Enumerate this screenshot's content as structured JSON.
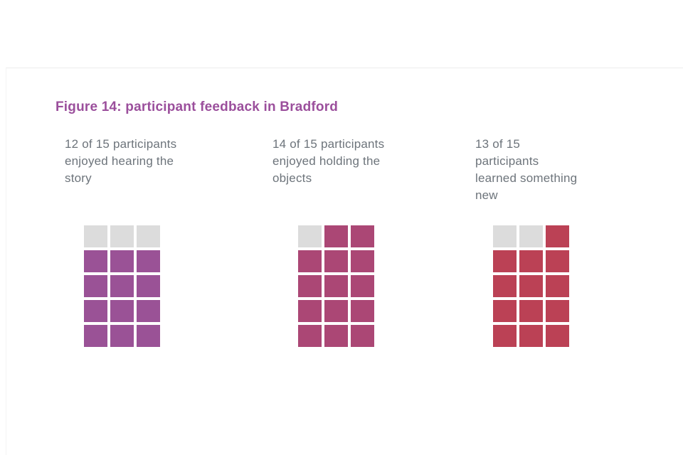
{
  "figure": {
    "title": "Figure 14: participant feedback in Bradford",
    "title_color": "#9b4f9c",
    "label_color": "#6d747b",
    "empty_cell_color": "#dcdcdc",
    "page_border_color": "#ececec"
  },
  "chart_data": {
    "type": "waffle",
    "title": "Figure 14: participant feedback in Bradford",
    "unit": "participants",
    "grid": {
      "columns": 3,
      "rows": 5,
      "cells_per_chart": 15
    },
    "layout_hint": "three waffle charts side by side; unfilled cells appear first (top-left, reading order), filled cells below",
    "charts": [
      {
        "label": "12 of 15 participants\nenjoyed hearing the\nstory",
        "value": 12,
        "total": 15,
        "fill_color": "#9a5296"
      },
      {
        "label": "14 of 15 participants\nenjoyed holding the\nobjects",
        "value": 14,
        "total": 15,
        "fill_color": "#ab4775"
      },
      {
        "label": "13 of 15\nparticipants\nlearned something\nnew",
        "value": 13,
        "total": 15,
        "fill_color": "#bb4155"
      }
    ]
  }
}
